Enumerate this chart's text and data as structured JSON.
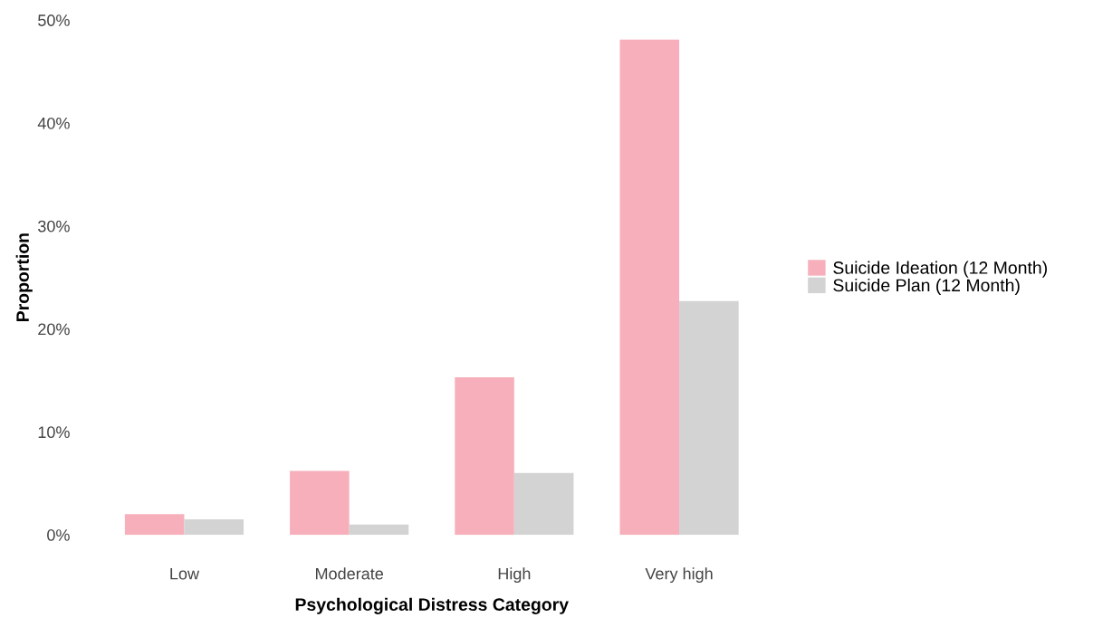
{
  "chart_data": {
    "type": "bar",
    "categories": [
      "Low",
      "Moderate",
      "High",
      "Very high"
    ],
    "series": [
      {
        "name": "Suicide Ideation (12 Month)",
        "color": "#f7b0bb",
        "values": [
          2.0,
          6.2,
          15.3,
          48.1
        ]
      },
      {
        "name": "Suicide Plan (12 Month)",
        "color": "#d3d3d3",
        "values": [
          1.5,
          1.0,
          6.0,
          22.7
        ]
      }
    ],
    "xlabel": "Psychological Distress Category",
    "ylabel": "Proportion",
    "ylim": [
      0,
      50
    ],
    "yticks": [
      {
        "value": 0,
        "label": "0%"
      },
      {
        "value": 10,
        "label": "10%"
      },
      {
        "value": 20,
        "label": "20%"
      },
      {
        "value": 30,
        "label": "30%"
      },
      {
        "value": 40,
        "label": "40%"
      },
      {
        "value": 50,
        "label": "50%"
      }
    ],
    "grid": false,
    "legend": "right"
  }
}
